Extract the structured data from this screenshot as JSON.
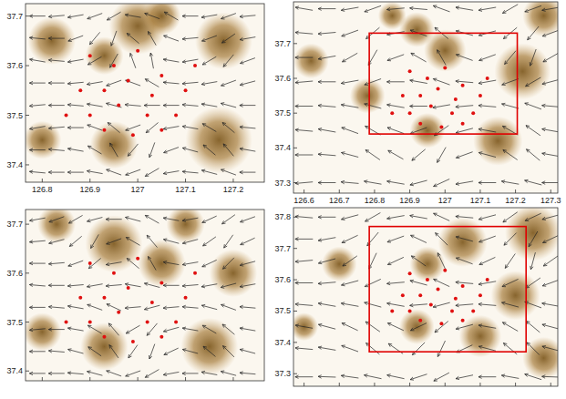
{
  "chart_data": [
    {
      "type": "vector_field",
      "xlim": [
        126.765,
        127.265
      ],
      "ylim": [
        37.365,
        37.725
      ],
      "xticks": [
        126.8,
        126.9,
        127,
        127.1,
        127.2
      ],
      "yticks": [
        37.4,
        37.5,
        37.6,
        37.7
      ],
      "terrain": [
        [
          127.0,
          37.68,
          0.06
        ],
        [
          126.93,
          37.62,
          0.04
        ],
        [
          127.18,
          37.65,
          0.06
        ],
        [
          126.82,
          37.65,
          0.05
        ],
        [
          126.95,
          37.44,
          0.05
        ],
        [
          127.17,
          37.45,
          0.07
        ],
        [
          126.8,
          37.45,
          0.04
        ],
        [
          127.05,
          37.7,
          0.04
        ]
      ],
      "stations": [
        [
          126.9,
          37.62
        ],
        [
          126.95,
          37.6
        ],
        [
          127.0,
          37.63
        ],
        [
          127.05,
          37.58
        ],
        [
          126.88,
          37.55
        ],
        [
          126.93,
          37.55
        ],
        [
          126.98,
          37.57
        ],
        [
          127.03,
          37.54
        ],
        [
          127.1,
          37.55
        ],
        [
          126.85,
          37.5
        ],
        [
          126.9,
          37.5
        ],
        [
          126.96,
          37.52
        ],
        [
          127.02,
          37.5
        ],
        [
          127.08,
          37.5
        ],
        [
          126.93,
          37.47
        ],
        [
          126.99,
          37.46
        ],
        [
          127.05,
          37.47
        ],
        [
          127.12,
          37.6
        ]
      ],
      "wind_x": [
        126.79,
        126.83,
        126.87,
        126.91,
        126.95,
        126.99,
        127.03,
        127.07,
        127.11,
        127.15,
        127.19,
        127.23
      ],
      "wind_y": [
        37.7,
        37.655,
        37.61,
        37.565,
        37.52,
        37.475,
        37.43,
        37.385
      ],
      "wind_dir": [
        [
          180,
          185,
          190,
          200,
          210,
          170,
          160,
          150,
          180,
          190,
          200,
          185
        ],
        [
          175,
          180,
          200,
          230,
          250,
          140,
          120,
          160,
          185,
          200,
          215,
          190
        ],
        [
          170,
          175,
          190,
          210,
          240,
          110,
          100,
          170,
          190,
          210,
          230,
          200
        ],
        [
          180,
          180,
          185,
          190,
          200,
          160,
          150,
          175,
          185,
          190,
          200,
          195
        ],
        [
          185,
          180,
          175,
          170,
          165,
          175,
          180,
          180,
          175,
          170,
          165,
          180
        ],
        [
          190,
          185,
          180,
          160,
          140,
          200,
          220,
          190,
          170,
          150,
          140,
          175
        ],
        [
          180,
          175,
          170,
          150,
          120,
          230,
          250,
          200,
          165,
          140,
          130,
          170
        ],
        [
          175,
          180,
          180,
          170,
          160,
          200,
          210,
          190,
          175,
          165,
          160,
          180
        ]
      ]
    },
    {
      "type": "vector_field",
      "xlim": [
        126.57,
        127.32
      ],
      "ylim": [
        37.27,
        37.82
      ],
      "xticks": [
        126.6,
        126.7,
        126.8,
        126.9,
        127,
        127.1,
        127.2,
        127.3
      ],
      "yticks": [
        37.3,
        37.4,
        37.5,
        37.6,
        37.7
      ],
      "region": {
        "xlim": [
          126.785,
          127.205
        ],
        "ylim": [
          37.44,
          37.73
        ]
      },
      "terrain": [
        [
          127.0,
          37.68,
          0.06
        ],
        [
          126.92,
          37.74,
          0.05
        ],
        [
          127.22,
          37.62,
          0.08
        ],
        [
          126.78,
          37.55,
          0.05
        ],
        [
          126.95,
          37.45,
          0.05
        ],
        [
          127.15,
          37.42,
          0.07
        ],
        [
          126.62,
          37.65,
          0.05
        ],
        [
          127.28,
          37.78,
          0.06
        ],
        [
          126.85,
          37.78,
          0.04
        ]
      ],
      "stations": [
        [
          126.9,
          37.62
        ],
        [
          126.95,
          37.6
        ],
        [
          127.0,
          37.63
        ],
        [
          127.05,
          37.58
        ],
        [
          126.88,
          37.55
        ],
        [
          126.93,
          37.55
        ],
        [
          126.98,
          37.57
        ],
        [
          127.03,
          37.54
        ],
        [
          127.1,
          37.55
        ],
        [
          126.85,
          37.5
        ],
        [
          126.9,
          37.5
        ],
        [
          126.96,
          37.52
        ],
        [
          127.02,
          37.5
        ],
        [
          127.08,
          37.5
        ],
        [
          126.93,
          37.47
        ],
        [
          126.99,
          37.46
        ],
        [
          127.05,
          37.47
        ],
        [
          127.12,
          37.6
        ]
      ],
      "wind_x": [
        126.6,
        126.665,
        126.73,
        126.795,
        126.86,
        126.925,
        126.99,
        127.055,
        127.12,
        127.185,
        127.25,
        127.3
      ],
      "wind_y": [
        37.8,
        37.73,
        37.66,
        37.59,
        37.52,
        37.45,
        37.38,
        37.3
      ],
      "wind_dir": [
        [
          170,
          180,
          190,
          200,
          185,
          175,
          160,
          170,
          190,
          210,
          200,
          190
        ],
        [
          175,
          185,
          200,
          220,
          190,
          160,
          140,
          165,
          195,
          220,
          230,
          200
        ],
        [
          180,
          190,
          210,
          240,
          200,
          150,
          120,
          160,
          200,
          230,
          250,
          210
        ],
        [
          185,
          180,
          190,
          200,
          180,
          170,
          160,
          175,
          190,
          200,
          210,
          195
        ],
        [
          180,
          175,
          170,
          165,
          170,
          180,
          190,
          185,
          175,
          165,
          160,
          175
        ],
        [
          175,
          170,
          160,
          150,
          160,
          200,
          215,
          195,
          170,
          150,
          145,
          170
        ],
        [
          180,
          175,
          165,
          145,
          150,
          220,
          240,
          200,
          165,
          145,
          140,
          170
        ],
        [
          185,
          180,
          175,
          170,
          170,
          195,
          205,
          190,
          180,
          170,
          165,
          180
        ]
      ]
    },
    {
      "type": "vector_field",
      "tick_labels": "y",
      "xlim": [
        126.765,
        127.265
      ],
      "ylim": [
        37.38,
        37.73
      ],
      "xticks": [
        126.8,
        126.9,
        127,
        127.1,
        127.2
      ],
      "yticks": [
        37.4,
        37.5,
        37.6,
        37.7
      ],
      "terrain": [
        [
          126.95,
          37.66,
          0.06
        ],
        [
          127.05,
          37.62,
          0.05
        ],
        [
          126.83,
          37.7,
          0.04
        ],
        [
          127.2,
          37.6,
          0.05
        ],
        [
          126.93,
          37.45,
          0.05
        ],
        [
          127.15,
          37.45,
          0.06
        ],
        [
          126.8,
          37.48,
          0.04
        ],
        [
          127.1,
          37.7,
          0.04
        ]
      ],
      "stations": [
        [
          126.9,
          37.62
        ],
        [
          126.95,
          37.6
        ],
        [
          127.0,
          37.63
        ],
        [
          127.05,
          37.58
        ],
        [
          126.88,
          37.55
        ],
        [
          126.93,
          37.55
        ],
        [
          126.98,
          37.57
        ],
        [
          127.03,
          37.54
        ],
        [
          127.1,
          37.55
        ],
        [
          126.85,
          37.5
        ],
        [
          126.9,
          37.5
        ],
        [
          126.96,
          37.52
        ],
        [
          127.02,
          37.5
        ],
        [
          127.08,
          37.5
        ],
        [
          126.93,
          37.47
        ],
        [
          126.99,
          37.46
        ],
        [
          127.05,
          37.47
        ],
        [
          127.12,
          37.6
        ]
      ],
      "wind_x": [
        126.79,
        126.83,
        126.87,
        126.91,
        126.95,
        126.99,
        127.03,
        127.07,
        127.11,
        127.15,
        127.19,
        127.23
      ],
      "wind_y": [
        37.71,
        37.665,
        37.62,
        37.575,
        37.53,
        37.485,
        37.44,
        37.395
      ],
      "wind_dir": [
        [
          190,
          200,
          210,
          195,
          180,
          165,
          150,
          170,
          190,
          205,
          215,
          200
        ],
        [
          185,
          195,
          220,
          240,
          200,
          150,
          130,
          165,
          195,
          215,
          235,
          205
        ],
        [
          180,
          185,
          200,
          220,
          190,
          140,
          120,
          170,
          190,
          205,
          225,
          195
        ],
        [
          175,
          180,
          185,
          190,
          185,
          170,
          165,
          180,
          185,
          190,
          195,
          190
        ],
        [
          180,
          175,
          170,
          160,
          155,
          185,
          195,
          185,
          175,
          165,
          160,
          175
        ],
        [
          185,
          180,
          170,
          150,
          130,
          210,
          230,
          195,
          170,
          150,
          140,
          170
        ],
        [
          180,
          175,
          165,
          145,
          125,
          235,
          250,
          205,
          165,
          140,
          135,
          165
        ],
        [
          180,
          180,
          175,
          165,
          160,
          200,
          210,
          190,
          180,
          170,
          165,
          175
        ]
      ]
    },
    {
      "type": "vector_field",
      "tick_labels": "y",
      "xlim": [
        126.57,
        127.32
      ],
      "ylim": [
        37.26,
        37.83
      ],
      "xticks": [
        126.6,
        126.7,
        126.8,
        126.9,
        127,
        127.1,
        127.2,
        127.3
      ],
      "yticks": [
        37.3,
        37.4,
        37.5,
        37.6,
        37.7,
        37.8
      ],
      "region": {
        "xlim": [
          126.785,
          127.23
        ],
        "ylim": [
          37.37,
          37.77
        ]
      },
      "terrain": [
        [
          127.05,
          37.72,
          0.07
        ],
        [
          127.25,
          37.75,
          0.08
        ],
        [
          126.95,
          37.65,
          0.05
        ],
        [
          127.2,
          37.55,
          0.07
        ],
        [
          126.92,
          37.45,
          0.05
        ],
        [
          127.1,
          37.42,
          0.06
        ],
        [
          126.7,
          37.65,
          0.05
        ],
        [
          126.6,
          37.45,
          0.04
        ],
        [
          127.28,
          37.35,
          0.06
        ]
      ],
      "stations": [
        [
          126.9,
          37.62
        ],
        [
          126.95,
          37.6
        ],
        [
          127.0,
          37.63
        ],
        [
          127.05,
          37.58
        ],
        [
          126.88,
          37.55
        ],
        [
          126.93,
          37.55
        ],
        [
          126.98,
          37.57
        ],
        [
          127.03,
          37.54
        ],
        [
          127.1,
          37.55
        ],
        [
          126.85,
          37.5
        ],
        [
          126.9,
          37.5
        ],
        [
          126.96,
          37.52
        ],
        [
          127.02,
          37.5
        ],
        [
          127.08,
          37.5
        ],
        [
          126.93,
          37.47
        ],
        [
          126.99,
          37.46
        ],
        [
          127.05,
          37.47
        ],
        [
          127.12,
          37.6
        ]
      ],
      "wind_x": [
        126.6,
        126.665,
        126.73,
        126.795,
        126.86,
        126.925,
        126.99,
        127.055,
        127.12,
        127.185,
        127.25,
        127.3
      ],
      "wind_y": [
        37.8,
        37.73,
        37.66,
        37.59,
        37.52,
        37.45,
        37.38,
        37.29
      ],
      "wind_dir": [
        [
          175,
          180,
          195,
          210,
          190,
          170,
          155,
          175,
          195,
          215,
          205,
          195
        ],
        [
          180,
          190,
          205,
          230,
          200,
          155,
          135,
          165,
          200,
          225,
          240,
          205
        ],
        [
          185,
          195,
          215,
          245,
          205,
          145,
          115,
          160,
          205,
          235,
          255,
          215
        ],
        [
          180,
          185,
          195,
          205,
          185,
          165,
          155,
          175,
          190,
          205,
          215,
          200
        ],
        [
          175,
          170,
          170,
          165,
          170,
          185,
          195,
          185,
          175,
          165,
          160,
          170
        ],
        [
          170,
          165,
          155,
          145,
          155,
          205,
          220,
          195,
          170,
          150,
          140,
          165
        ],
        [
          175,
          170,
          160,
          140,
          145,
          225,
          245,
          205,
          165,
          140,
          135,
          165
        ],
        [
          180,
          178,
          172,
          168,
          168,
          198,
          208,
          192,
          180,
          170,
          162,
          178
        ]
      ]
    }
  ]
}
